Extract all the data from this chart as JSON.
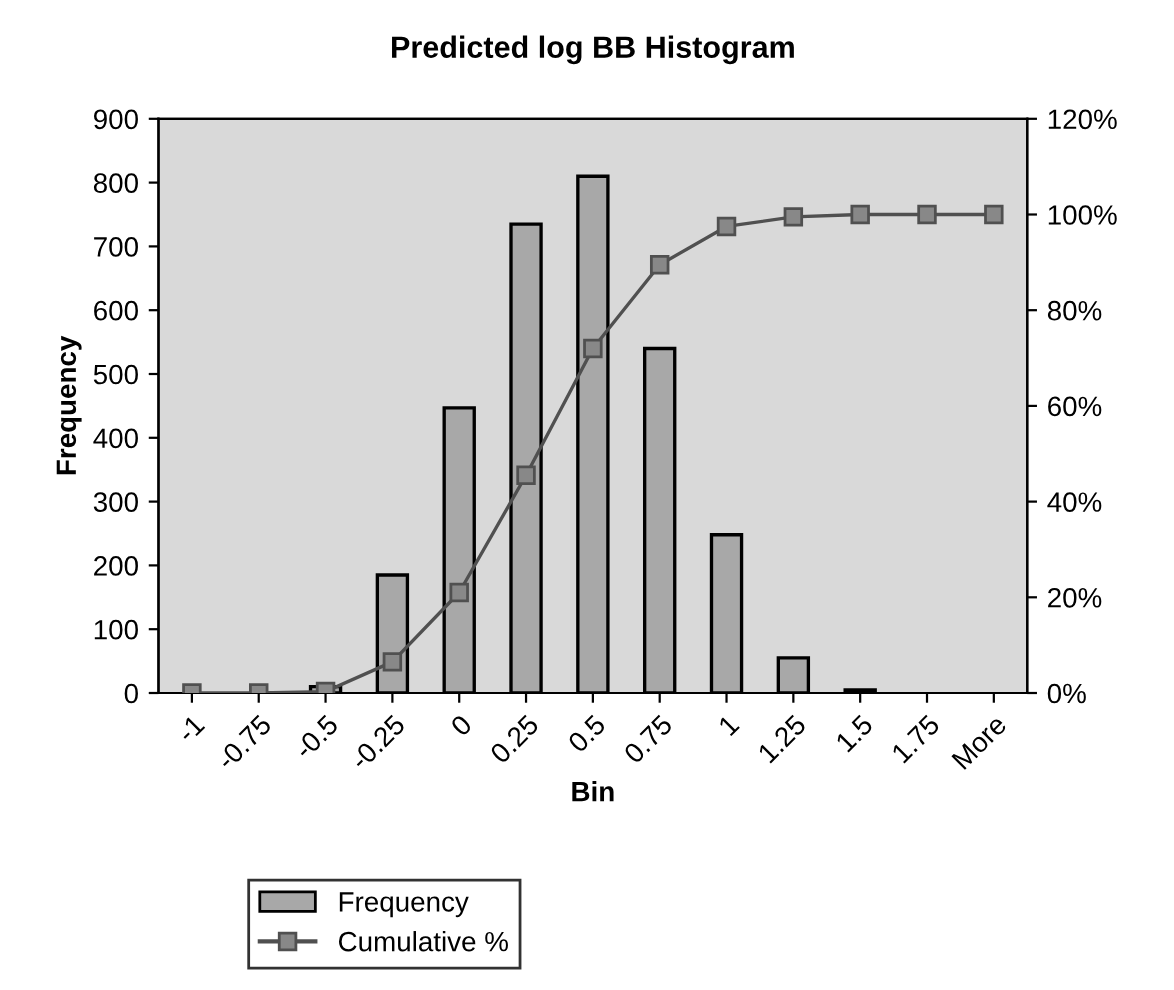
{
  "chart_data": {
    "type": "bar",
    "title": "Predicted log BB Histogram",
    "xlabel": "Bin",
    "ylabel": "Frequency",
    "categories": [
      "-1",
      "-0.75",
      "-0.5",
      "-0.25",
      "0",
      "0.25",
      "0.5",
      "0.75",
      "1",
      "1.25",
      "1.5",
      "1.75",
      "More"
    ],
    "series": [
      {
        "name": "Frequency",
        "color": "#a8a8a8",
        "values": [
          0,
          0,
          10,
          185,
          447,
          735,
          810,
          540,
          248,
          55,
          5,
          0,
          0
        ]
      },
      {
        "name": "Cumulative %",
        "type": "line",
        "axis": "y2",
        "color": "#505050",
        "marker": "square",
        "values": [
          0,
          0,
          0.3,
          6.5,
          21,
          45.5,
          72,
          89.5,
          97.5,
          99.5,
          100,
          100,
          100
        ]
      }
    ],
    "ylim": [
      0,
      900
    ],
    "yticks": [
      0,
      100,
      200,
      300,
      400,
      500,
      600,
      700,
      800,
      900
    ],
    "y2lim": [
      0,
      120
    ],
    "y2ticks": [
      {
        "value": 0,
        "label": "0%"
      },
      {
        "value": 20,
        "label": "20%"
      },
      {
        "value": 40,
        "label": "40%"
      },
      {
        "value": 60,
        "label": "60%"
      },
      {
        "value": 80,
        "label": "80%"
      },
      {
        "value": 100,
        "label": "100%"
      },
      {
        "value": 120,
        "label": "120%"
      }
    ],
    "grid": false,
    "legend": "bottom left"
  }
}
